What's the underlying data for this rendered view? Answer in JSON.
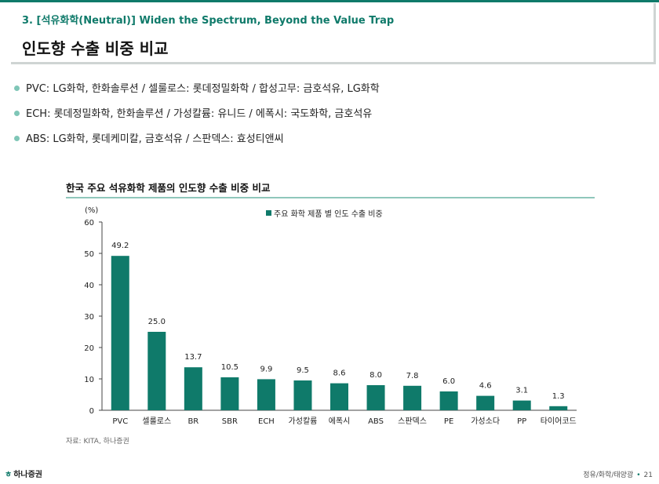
{
  "header": {
    "section_number": "3.",
    "section_text": "[석유화학(Neutral)] Widen the Spectrum, Beyond the Value Trap",
    "title": "인도향 수출 비중 비교"
  },
  "bullets": [
    "PVC: LG화학, 한화솔루션 / 셀룰로스: 롯데정밀화학 / 합성고무: 금호석유, LG화학",
    "ECH: 롯데정밀화학, 한화솔루션  / 가성칼륨: 유니드 / 에폭시: 국도화학, 금호석유",
    "ABS: LG화학, 롯데케미칼, 금호석유 / 스판덱스: 효성티앤씨"
  ],
  "colors": {
    "accent": "#0f7a6a",
    "bar": "#0f7a6a",
    "bullet_dot": "#7fc6b7"
  },
  "chart_data": {
    "type": "bar",
    "title": "한국 주요 석유화학 제품의 인도향 수출 비중 비교",
    "ylabel": "(%)",
    "ylim": [
      0,
      60
    ],
    "yticks": [
      0,
      10,
      20,
      30,
      40,
      50,
      60
    ],
    "legend": "주요 화학 제품 별 인도 수출 비중",
    "legend_position": "top-center",
    "grid": false,
    "categories": [
      "PVC",
      "셀룰로스",
      "BR",
      "SBR",
      "ECH",
      "가성칼륨",
      "에폭시",
      "ABS",
      "스판덱스",
      "PE",
      "가성소다",
      "PP",
      "타이어코드"
    ],
    "values": [
      49.2,
      25.0,
      13.7,
      10.5,
      9.9,
      9.5,
      8.6,
      8.0,
      7.8,
      6.0,
      4.6,
      3.1,
      1.3
    ],
    "value_labels": [
      "49.2",
      "25.0",
      "13.7",
      "10.5",
      "9.9",
      "9.5",
      "8.6",
      "8.0",
      "7.8",
      "6.0",
      "4.6",
      "3.1",
      "1.3"
    ]
  },
  "source": "자료: KITA, 하나증권",
  "footer": {
    "logo_text": "하나증권",
    "category": "정유/화학/태양광",
    "page": "21"
  }
}
